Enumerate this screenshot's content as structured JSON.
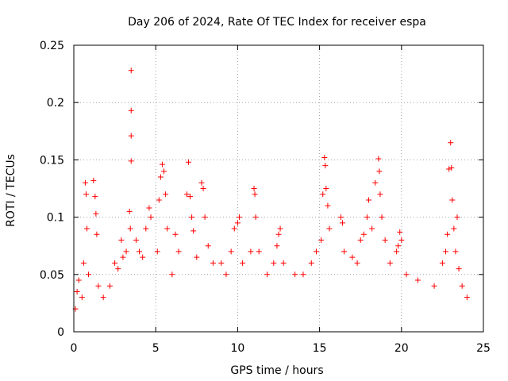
{
  "chart_data": {
    "type": "scatter",
    "title": "Day 206 of 2024, Rate Of TEC Index for receiver espa",
    "xlabel": "GPS time / hours",
    "ylabel": "ROTI / TECUs",
    "xlim": [
      0,
      25
    ],
    "ylim": [
      0,
      0.25
    ],
    "xticks": [
      0,
      5,
      10,
      15,
      20,
      25
    ],
    "xtick_labels": [
      "0",
      "5",
      "10",
      "15",
      "20",
      "25"
    ],
    "yticks": [
      0,
      0.05,
      0.1,
      0.15,
      0.2,
      0.25
    ],
    "ytick_labels": [
      "0",
      "0.05",
      "0.1",
      "0.15",
      "0.2",
      "0.25"
    ],
    "grid": true,
    "marker": "plus",
    "series": [
      {
        "name": "ROTI",
        "color": "#ff0000",
        "points": [
          [
            0.1,
            0.02
          ],
          [
            0.2,
            0.035
          ],
          [
            0.3,
            0.045
          ],
          [
            0.5,
            0.03
          ],
          [
            0.6,
            0.06
          ],
          [
            0.7,
            0.13
          ],
          [
            0.75,
            0.12
          ],
          [
            0.8,
            0.09
          ],
          [
            0.9,
            0.05
          ],
          [
            1.2,
            0.132
          ],
          [
            1.3,
            0.118
          ],
          [
            1.35,
            0.103
          ],
          [
            1.4,
            0.085
          ],
          [
            1.5,
            0.04
          ],
          [
            1.8,
            0.03
          ],
          [
            2.2,
            0.04
          ],
          [
            2.5,
            0.06
          ],
          [
            2.7,
            0.055
          ],
          [
            2.9,
            0.08
          ],
          [
            3.0,
            0.065
          ],
          [
            3.2,
            0.07
          ],
          [
            3.4,
            0.105
          ],
          [
            3.45,
            0.09
          ],
          [
            3.5,
            0.228
          ],
          [
            3.5,
            0.193
          ],
          [
            3.5,
            0.171
          ],
          [
            3.5,
            0.149
          ],
          [
            3.8,
            0.08
          ],
          [
            4.0,
            0.07
          ],
          [
            4.2,
            0.065
          ],
          [
            4.4,
            0.09
          ],
          [
            4.6,
            0.108
          ],
          [
            4.7,
            0.1
          ],
          [
            5.1,
            0.07
          ],
          [
            5.2,
            0.115
          ],
          [
            5.3,
            0.135
          ],
          [
            5.4,
            0.146
          ],
          [
            5.5,
            0.14
          ],
          [
            5.6,
            0.12
          ],
          [
            5.7,
            0.09
          ],
          [
            6.0,
            0.05
          ],
          [
            6.2,
            0.085
          ],
          [
            6.4,
            0.07
          ],
          [
            6.9,
            0.12
          ],
          [
            7.0,
            0.148
          ],
          [
            7.1,
            0.118
          ],
          [
            7.2,
            0.1
          ],
          [
            7.3,
            0.088
          ],
          [
            7.5,
            0.065
          ],
          [
            7.8,
            0.13
          ],
          [
            7.9,
            0.125
          ],
          [
            8.0,
            0.1
          ],
          [
            8.2,
            0.075
          ],
          [
            8.5,
            0.06
          ],
          [
            9.0,
            0.06
          ],
          [
            9.3,
            0.05
          ],
          [
            9.6,
            0.07
          ],
          [
            9.8,
            0.09
          ],
          [
            10.0,
            0.095
          ],
          [
            10.1,
            0.1
          ],
          [
            10.3,
            0.06
          ],
          [
            10.8,
            0.07
          ],
          [
            11.0,
            0.125
          ],
          [
            11.05,
            0.12
          ],
          [
            11.1,
            0.1
          ],
          [
            11.3,
            0.07
          ],
          [
            11.8,
            0.05
          ],
          [
            12.2,
            0.06
          ],
          [
            12.4,
            0.075
          ],
          [
            12.5,
            0.085
          ],
          [
            12.6,
            0.09
          ],
          [
            12.8,
            0.06
          ],
          [
            13.5,
            0.05
          ],
          [
            14.0,
            0.05
          ],
          [
            14.5,
            0.06
          ],
          [
            14.8,
            0.07
          ],
          [
            15.1,
            0.08
          ],
          [
            15.2,
            0.12
          ],
          [
            15.3,
            0.152
          ],
          [
            15.35,
            0.145
          ],
          [
            15.4,
            0.125
          ],
          [
            15.5,
            0.11
          ],
          [
            15.6,
            0.09
          ],
          [
            16.3,
            0.1
          ],
          [
            16.4,
            0.095
          ],
          [
            16.5,
            0.07
          ],
          [
            17.0,
            0.065
          ],
          [
            17.3,
            0.06
          ],
          [
            17.5,
            0.08
          ],
          [
            17.7,
            0.085
          ],
          [
            17.9,
            0.1
          ],
          [
            18.0,
            0.115
          ],
          [
            18.2,
            0.09
          ],
          [
            18.4,
            0.13
          ],
          [
            18.6,
            0.151
          ],
          [
            18.65,
            0.14
          ],
          [
            18.7,
            0.12
          ],
          [
            18.8,
            0.1
          ],
          [
            19.0,
            0.08
          ],
          [
            19.3,
            0.06
          ],
          [
            19.7,
            0.07
          ],
          [
            19.8,
            0.075
          ],
          [
            19.9,
            0.087
          ],
          [
            20.0,
            0.08
          ],
          [
            20.3,
            0.05
          ],
          [
            21.0,
            0.045
          ],
          [
            22.0,
            0.04
          ],
          [
            22.5,
            0.06
          ],
          [
            22.7,
            0.07
          ],
          [
            22.8,
            0.085
          ],
          [
            22.9,
            0.142
          ],
          [
            23.0,
            0.165
          ],
          [
            23.05,
            0.143
          ],
          [
            23.1,
            0.115
          ],
          [
            23.2,
            0.09
          ],
          [
            23.3,
            0.07
          ],
          [
            23.4,
            0.1
          ],
          [
            23.5,
            0.055
          ],
          [
            23.7,
            0.04
          ],
          [
            24.0,
            0.03
          ]
        ]
      }
    ]
  }
}
